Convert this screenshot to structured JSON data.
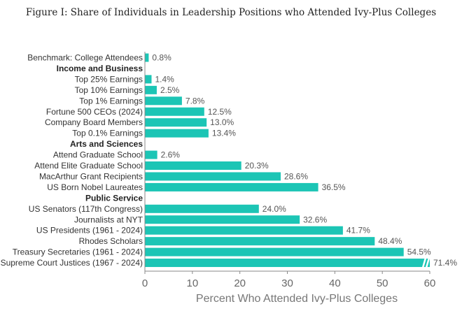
{
  "chart_data": {
    "type": "bar",
    "orientation": "horizontal",
    "title": "Figure I: Share of Individuals in Leadership Positions who Attended Ivy-Plus Colleges",
    "xlabel": "Percent Who Attended Ivy-Plus Colleges",
    "xlim": [
      0,
      60
    ],
    "xticks": [
      0,
      10,
      20,
      30,
      40,
      50,
      60
    ],
    "bar_color": "#1cc5b5",
    "rows": [
      {
        "kind": "bar",
        "label": "Benchmark: College Attendees",
        "value": 0.8,
        "value_label": "0.8%"
      },
      {
        "kind": "header",
        "label": "Income and Business"
      },
      {
        "kind": "bar",
        "label": "Top 25% Earnings",
        "value": 1.4,
        "value_label": "1.4%"
      },
      {
        "kind": "bar",
        "label": "Top 10% Earnings",
        "value": 2.5,
        "value_label": "2.5%"
      },
      {
        "kind": "bar",
        "label": "Top 1% Earnings",
        "value": 7.8,
        "value_label": "7.8%"
      },
      {
        "kind": "bar",
        "label": "Fortune 500 CEOs (2024)",
        "value": 12.5,
        "value_label": "12.5%"
      },
      {
        "kind": "bar",
        "label": "Company Board Members",
        "value": 13.0,
        "value_label": "13.0%"
      },
      {
        "kind": "bar",
        "label": "Top 0.1% Earnings",
        "value": 13.4,
        "value_label": "13.4%"
      },
      {
        "kind": "header",
        "label": "Arts and Sciences"
      },
      {
        "kind": "bar",
        "label": "Attend Graduate School",
        "value": 2.6,
        "value_label": "2.6%"
      },
      {
        "kind": "bar",
        "label": "Attend Elite Graduate School",
        "value": 20.3,
        "value_label": "20.3%"
      },
      {
        "kind": "bar",
        "label": "MacArthur Grant Recipients",
        "value": 28.6,
        "value_label": "28.6%"
      },
      {
        "kind": "bar",
        "label": "US Born Nobel Laureates",
        "value": 36.5,
        "value_label": "36.5%"
      },
      {
        "kind": "header",
        "label": "Public Service"
      },
      {
        "kind": "bar",
        "label": "US Senators (117th Congress)",
        "value": 24.0,
        "value_label": "24.0%"
      },
      {
        "kind": "bar",
        "label": "Journalists at NYT",
        "value": 32.6,
        "value_label": "32.6%"
      },
      {
        "kind": "bar",
        "label": "US Presidents (1961 - 2024)",
        "value": 41.7,
        "value_label": "41.7%"
      },
      {
        "kind": "bar",
        "label": "Rhodes Scholars",
        "value": 48.4,
        "value_label": "48.4%"
      },
      {
        "kind": "bar",
        "label": "Treasury Secretaries (1961 - 2024)",
        "value": 54.5,
        "value_label": "54.5%"
      },
      {
        "kind": "bar",
        "label": "Supreme Court Justices (1967 - 2024)",
        "value": 71.4,
        "value_label": "71.4%",
        "axis_break": true
      }
    ]
  }
}
